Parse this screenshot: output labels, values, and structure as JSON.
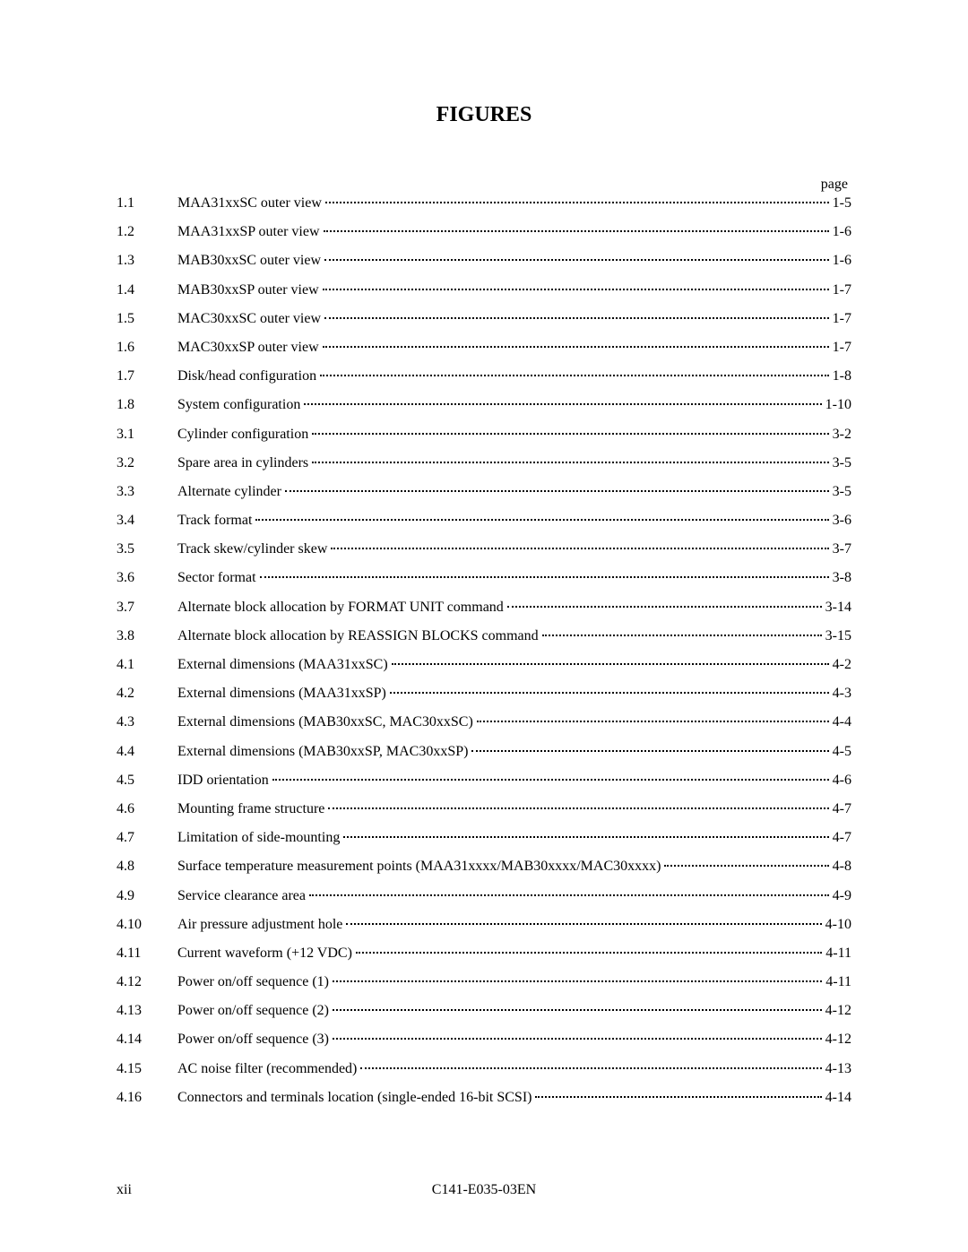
{
  "title": "FIGURES",
  "page_label": "page",
  "entries": [
    {
      "num": "1.1",
      "label": "MAA31xxSC outer view",
      "page": "1-5"
    },
    {
      "num": "1.2",
      "label": "MAA31xxSP outer view",
      "page": "1-6"
    },
    {
      "num": "1.3",
      "label": "MAB30xxSC outer view",
      "page": "1-6"
    },
    {
      "num": "1.4",
      "label": "MAB30xxSP outer view",
      "page": "1-7"
    },
    {
      "num": "1.5",
      "label": "MAC30xxSC outer view",
      "page": "1-7"
    },
    {
      "num": "1.6",
      "label": "MAC30xxSP outer view",
      "page": "1-7"
    },
    {
      "num": "1.7",
      "label": "Disk/head configuration",
      "page": "1-8"
    },
    {
      "num": "1.8",
      "label": "System configuration",
      "page": "1-10"
    },
    {
      "num": "3.1",
      "label": "Cylinder configuration",
      "page": "3-2"
    },
    {
      "num": "3.2",
      "label": "Spare area in cylinders",
      "page": "3-5"
    },
    {
      "num": "3.3",
      "label": "Alternate cylinder",
      "page": "3-5"
    },
    {
      "num": "3.4",
      "label": "Track format",
      "page": "3-6"
    },
    {
      "num": "3.5",
      "label": "Track skew/cylinder skew",
      "page": "3-7"
    },
    {
      "num": "3.6",
      "label": "Sector format",
      "page": "3-8"
    },
    {
      "num": "3.7",
      "label": "Alternate block allocation by FORMAT UNIT command",
      "page": "3-14"
    },
    {
      "num": "3.8",
      "label": "Alternate block allocation by REASSIGN BLOCKS command",
      "page": "3-15"
    },
    {
      "num": "4.1",
      "label": "External dimensions (MAA31xxSC)",
      "page": "4-2"
    },
    {
      "num": "4.2",
      "label": "External dimensions (MAA31xxSP)",
      "page": "4-3"
    },
    {
      "num": "4.3",
      "label": "External dimensions (MAB30xxSC, MAC30xxSC)",
      "page": "4-4"
    },
    {
      "num": "4.4",
      "label": "External dimensions (MAB30xxSP, MAC30xxSP)",
      "page": "4-5"
    },
    {
      "num": "4.5",
      "label": "IDD orientation",
      "page": "4-6"
    },
    {
      "num": "4.6",
      "label": "Mounting frame structure",
      "page": "4-7"
    },
    {
      "num": "4.7",
      "label": "Limitation of side-mounting",
      "page": "4-7"
    },
    {
      "num": "4.8",
      "label": "Surface temperature measurement points (MAA31xxxx/MAB30xxxx/MAC30xxxx)",
      "page": "4-8"
    },
    {
      "num": "4.9",
      "label": "Service clearance area",
      "page": "4-9"
    },
    {
      "num": "4.10",
      "label": "Air pressure adjustment hole",
      "page": "4-10"
    },
    {
      "num": "4.11",
      "label": "Current waveform (+12 VDC)",
      "page": "4-11"
    },
    {
      "num": "4.12",
      "label": "Power on/off sequence (1)",
      "page": "4-11"
    },
    {
      "num": "4.13",
      "label": "Power on/off sequence (2)",
      "page": "4-12"
    },
    {
      "num": "4.14",
      "label": "Power on/off sequence (3)",
      "page": "4-12"
    },
    {
      "num": "4.15",
      "label": "AC noise filter (recommended)",
      "page": "4-13"
    },
    {
      "num": "4.16",
      "label": "Connectors and terminals location (single-ended 16-bit SCSI)",
      "page": "4-14"
    }
  ],
  "footer": {
    "page_number": "xii",
    "doc_number": "C141-E035-03EN"
  }
}
